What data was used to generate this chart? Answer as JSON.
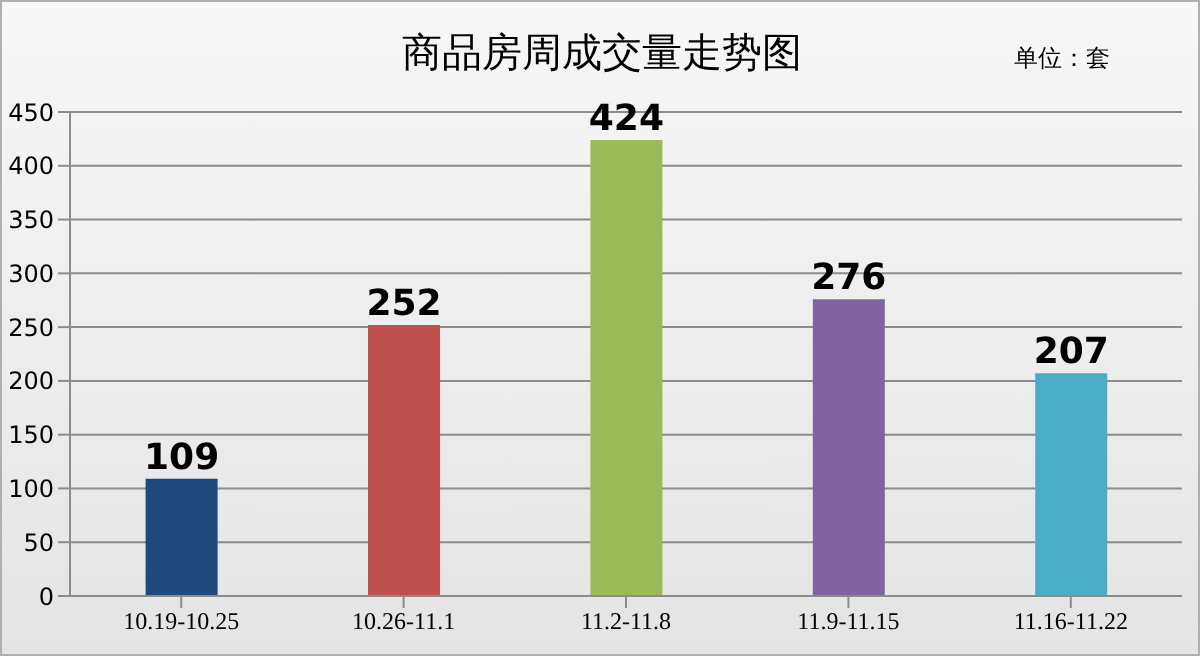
{
  "chart_data": {
    "type": "bar",
    "title": "商品房周成交量走势图",
    "annotations": [
      "单位：套"
    ],
    "categories": [
      "10.19-10.25",
      "10.26-11.1",
      "11.2-11.8",
      "11.9-11.15",
      "11.16-11.22"
    ],
    "values": [
      109,
      252,
      424,
      276,
      207
    ],
    "colors": [
      "#1f497d",
      "#c0504d",
      "#9bbb59",
      "#8064a2",
      "#4bacc6"
    ],
    "ylim": [
      0,
      450
    ],
    "yticks": [
      0,
      50,
      100,
      150,
      200,
      250,
      300,
      350,
      400,
      450
    ],
    "grid": "y",
    "data_labels": true
  }
}
